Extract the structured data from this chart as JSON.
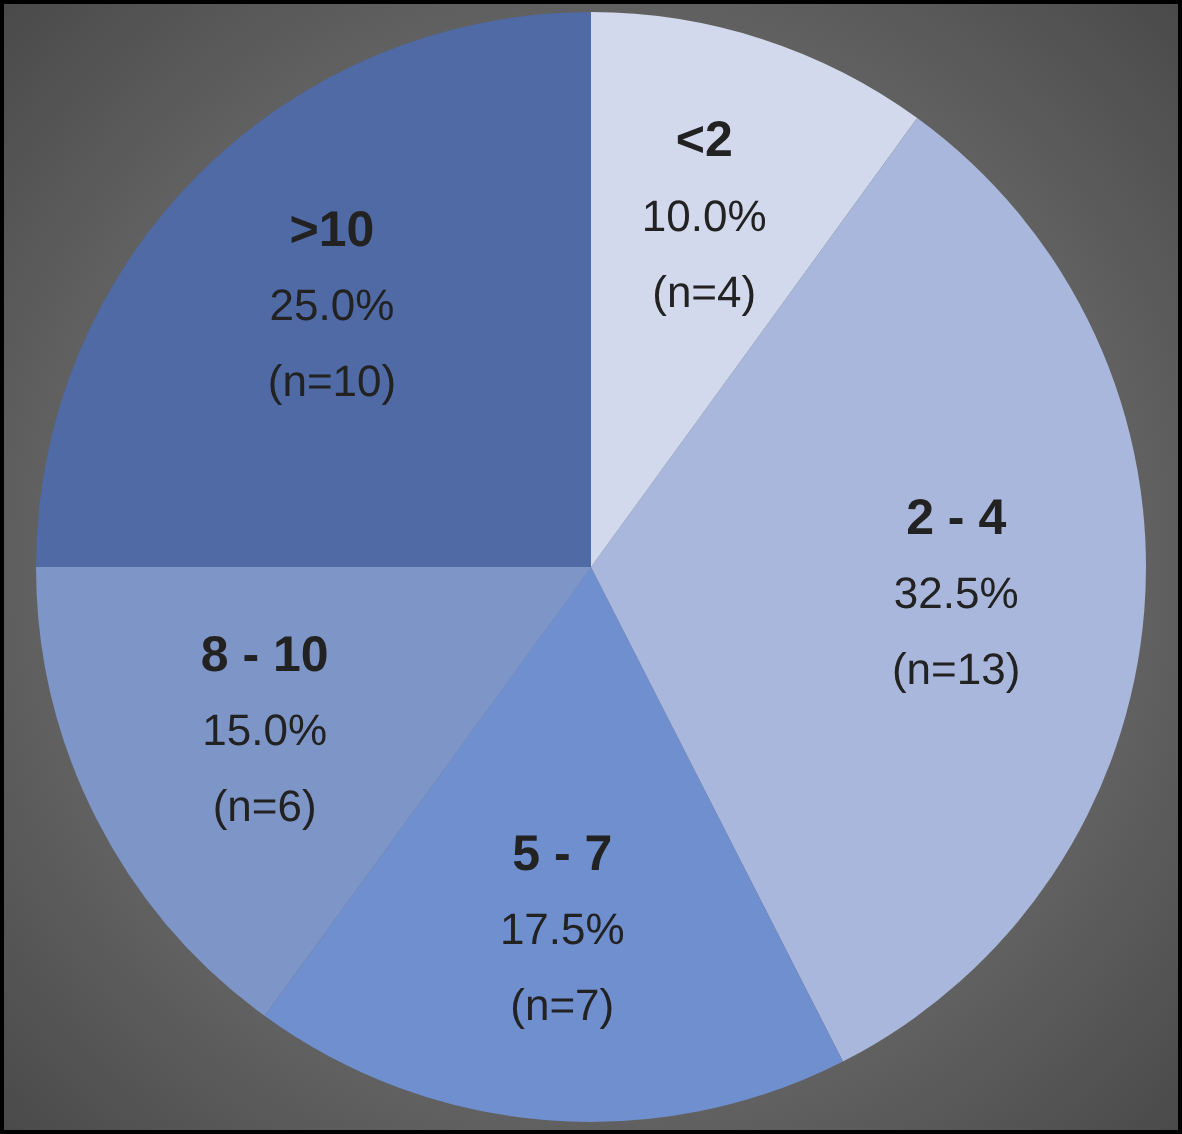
{
  "chart_data": {
    "type": "pie",
    "categories": [
      "<2",
      "2 - 4",
      "5 - 7",
      "8 - 10",
      ">10"
    ],
    "values": [
      10.0,
      32.5,
      17.5,
      15.0,
      25.0
    ],
    "value_labels": [
      "10.0%\n(n=4)",
      "32.5%\n(n=13)",
      "17.5%\n(n=7)",
      "15.0%\n(n=6)",
      "25.0%\n(n=10)"
    ],
    "colors": [
      "#d3d9ec",
      "#a9b7dc",
      "#6f8fcf",
      "#7e95c7",
      "#4f6aa4"
    ],
    "legend": false
  }
}
